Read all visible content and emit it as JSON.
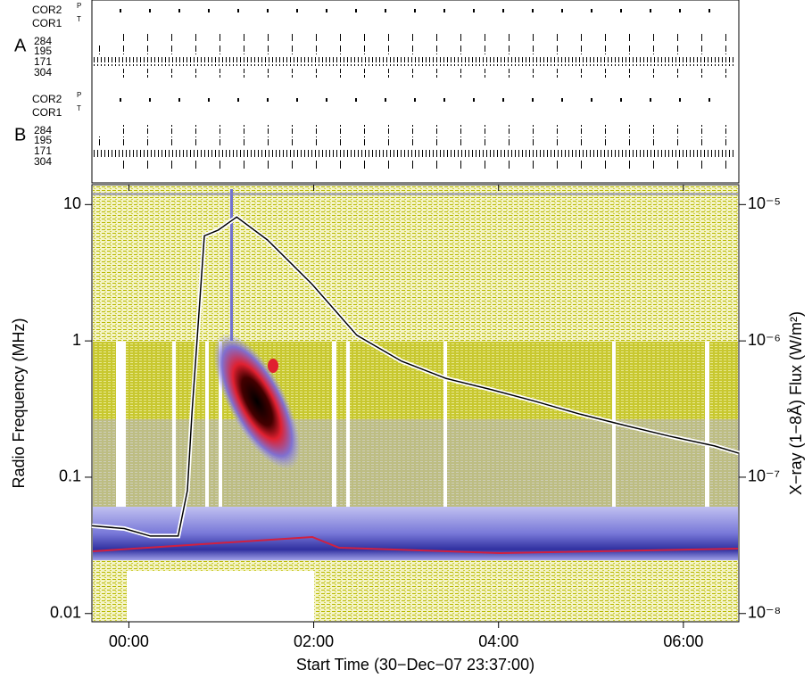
{
  "chart_data": {
    "type": "line",
    "xlabel": "Start Time (30−Dec−07 23:37:00)",
    "ylabel": "Radio Frequency (MHz)",
    "y2label": "X−ray (1−8Å) Flux (W/m²)",
    "xlim": [
      -1,
      419
    ],
    "xticks": [
      {
        "value": 23,
        "label": "00:00"
      },
      {
        "value": 143,
        "label": "02:00"
      },
      {
        "value": 263,
        "label": "04:00"
      },
      {
        "value": 383,
        "label": "06:00"
      }
    ],
    "ylim": [
      0.0087,
      14
    ],
    "ylog": true,
    "yticks": [
      0.01,
      0.1,
      1,
      10
    ],
    "y2lim": [
      8.7e-09,
      1.4e-05
    ],
    "y2log": true,
    "y2ticks": [
      {
        "value": 1e-08,
        "label": "10⁻⁸"
      },
      {
        "value": 1e-07,
        "label": "10⁻⁷"
      },
      {
        "value": 1e-06,
        "label": "10⁻⁶"
      },
      {
        "value": 1e-05,
        "label": "10⁻⁵"
      }
    ],
    "x": [
      -1,
      20,
      37,
      55,
      61,
      64,
      72,
      81,
      93,
      113,
      142,
      171,
      200,
      229,
      258,
      287,
      316,
      345,
      374,
      403,
      419
    ],
    "series": [
      {
        "color": "#000000",
        "axis": "y2",
        "values": [
          4.4e-08,
          4.2e-08,
          3.7e-08,
          3.7e-08,
          8e-08,
          3e-07,
          5.9e-06,
          6.5e-06,
          8.1e-06,
          5.5e-06,
          2.6e-06,
          1.1e-06,
          7.1e-07,
          5.3e-07,
          4.4e-07,
          3.6e-07,
          2.9e-07,
          2.4e-07,
          2e-07,
          1.7e-07,
          1.5e-07
        ]
      }
    ]
  },
  "observation_panels": [
    {
      "label": "A",
      "rows": [
        "COR2",
        "COR1",
        "284",
        "195",
        "171",
        "304"
      ],
      "cor2_sub": "P",
      "cor1_sub": "T"
    },
    {
      "label": "B",
      "rows": [
        "COR2",
        "COR1",
        "284",
        "195",
        "171",
        "304"
      ],
      "cor2_sub": "P",
      "cor1_sub": "T"
    }
  ]
}
